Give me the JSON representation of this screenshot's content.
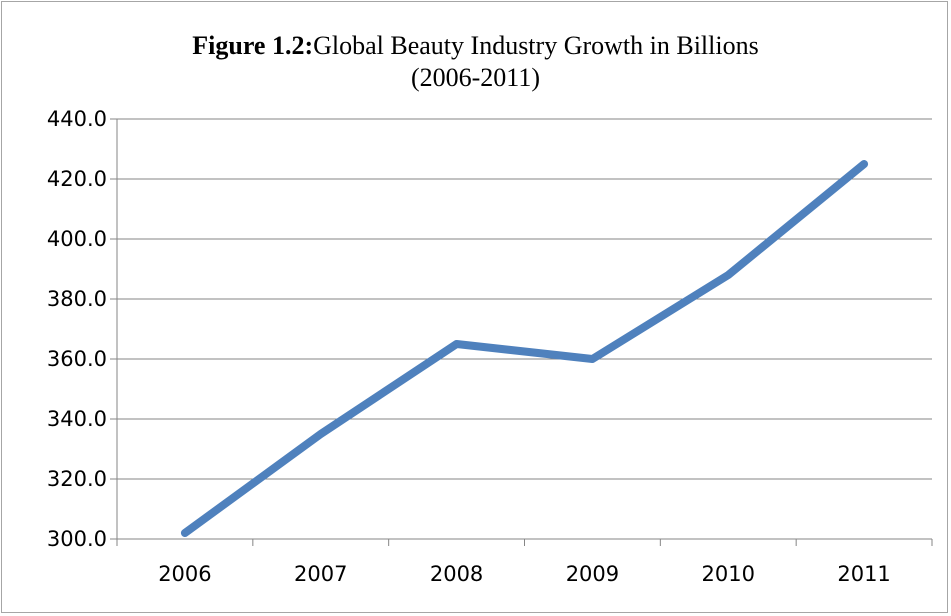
{
  "chart_data": {
    "type": "line",
    "title_bold": "Figure 1.2:",
    "title": "Global Beauty Industry Growth in Billions",
    "subtitle": "(2006-2011)",
    "categories": [
      "2006",
      "2007",
      "2008",
      "2009",
      "2010",
      "2011"
    ],
    "series": [
      {
        "values": [
          302,
          335,
          365,
          360,
          388,
          425
        ]
      }
    ],
    "y_ticks": [
      "300.0",
      "320.0",
      "340.0",
      "360.0",
      "380.0",
      "400.0",
      "420.0",
      "440.0"
    ],
    "ylim": [
      300,
      440
    ],
    "grid": true,
    "legend": "none",
    "line_color": "#4f81bd"
  }
}
